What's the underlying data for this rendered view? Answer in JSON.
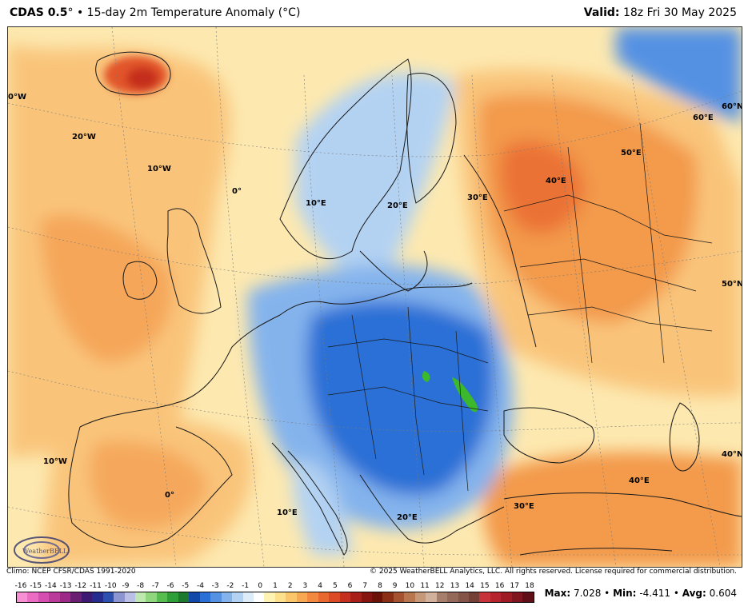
{
  "header": {
    "model": "CDAS 0.5",
    "degree_mark": "°",
    "separator": "•",
    "product": "15-day 2m Temperature Anomaly (°C)",
    "valid_label": "Valid:",
    "valid_time": "18z Fri 30 May 2025"
  },
  "map": {
    "longitude_labels": [
      "0°W",
      "20°W",
      "10°W",
      "0°",
      "10°E",
      "20°E",
      "30°E",
      "40°E",
      "50°E",
      "60°E",
      "10°W",
      "0°",
      "10°E",
      "20°E",
      "30°E",
      "40°E"
    ],
    "latitude_labels": [
      "60°N",
      "50°N",
      "40°N"
    ],
    "colors": {
      "warm_pale": "#fde9b0",
      "warm_mid": "#f9c47a",
      "warm_orange": "#f39a4c",
      "warm_deep": "#e2542b",
      "cool_pale": "#cfe6f7",
      "cool_mid": "#7fb8ec",
      "cool_deep": "#2a6fd6",
      "green_patch": "#3cb82c",
      "coast": "#1a1a1a"
    },
    "logo_text": "WeatherBELL"
  },
  "footer": {
    "climo": "Climo: NCEP CFSR/CDAS 1991-2020",
    "copyright": "© 2025 WeatherBELL Analytics, LLC. All rights reserved. License required for commercial distribution."
  },
  "legend": {
    "ticks": [
      "-16",
      "-15",
      "-14",
      "-13",
      "-12",
      "-11",
      "-10",
      "-9",
      "-8",
      "-7",
      "-6",
      "-5",
      "-4",
      "-3",
      "-2",
      "-1",
      "0",
      "1",
      "2",
      "3",
      "4",
      "5",
      "6",
      "7",
      "8",
      "9",
      "10",
      "11",
      "12",
      "13",
      "14",
      "15",
      "16",
      "17",
      "18"
    ],
    "colors": [
      "#f78fd3",
      "#ea6cc3",
      "#d44fb0",
      "#bb3b9b",
      "#9d2a86",
      "#6b1f72",
      "#3c1a73",
      "#242c8d",
      "#2d4fb0",
      "#8b96d0",
      "#b9bfe6",
      "#bfe8b0",
      "#8fd67e",
      "#57bd4f",
      "#2e9e39",
      "#1b7a2e",
      "#1248a8",
      "#2a6fd6",
      "#5591e3",
      "#84b3ec",
      "#b3d2f2",
      "#dcecf8",
      "#ffffff",
      "#fff3b3",
      "#fde08c",
      "#fbc56a",
      "#f8a851",
      "#f3893f",
      "#e9682f",
      "#dc4a25",
      "#c52f1e",
      "#a81e19",
      "#861512",
      "#6a1208",
      "#8a2e16",
      "#a45230",
      "#b8764f",
      "#c59878",
      "#d2b19c",
      "#a57f6b",
      "#95695a",
      "#845448",
      "#744036",
      "#c8323b",
      "#b7232d",
      "#9e1b24",
      "#801520",
      "#5f0f18"
    ]
  },
  "stats": {
    "max_label": "Max:",
    "max_value": "7.028",
    "min_label": "Min:",
    "min_value": "-4.411",
    "avg_label": "Avg:",
    "avg_value": "0.604",
    "bullet": "•"
  }
}
